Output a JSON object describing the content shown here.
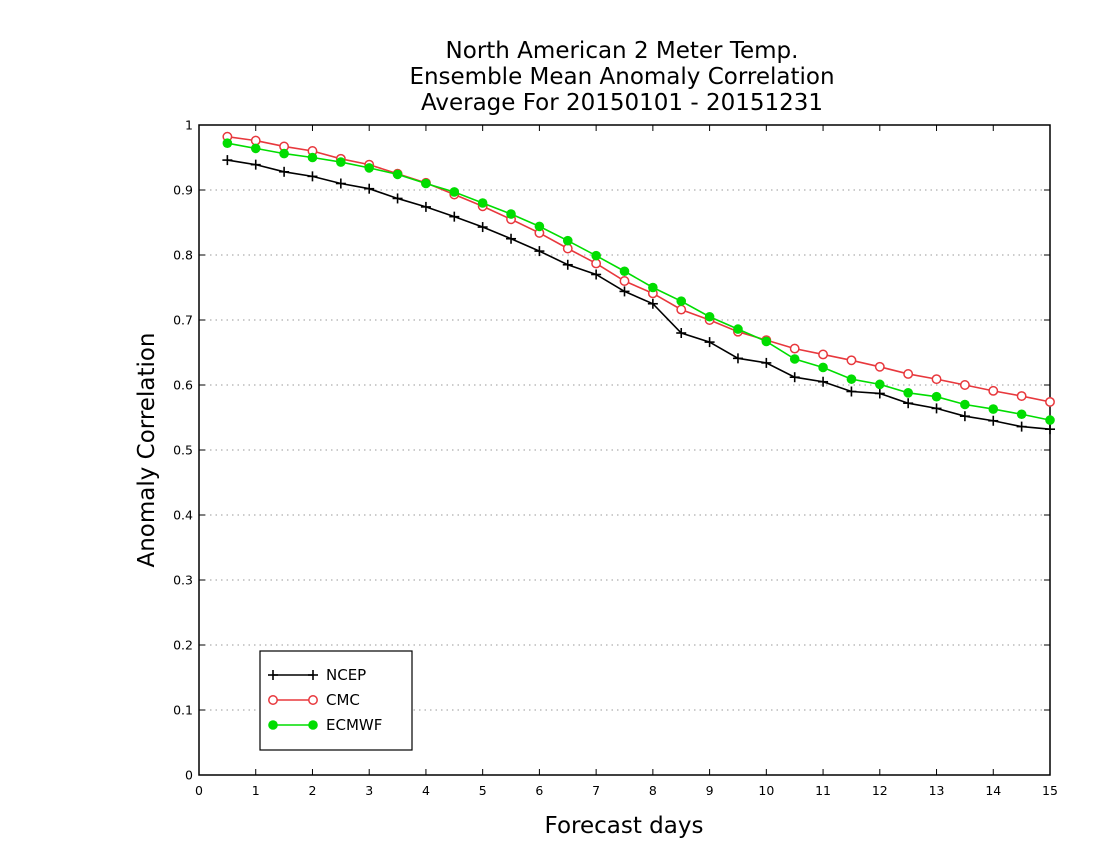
{
  "chart_data": {
    "type": "line",
    "title": [
      "North American 2 Meter Temp.",
      "Ensemble Mean Anomaly Correlation",
      "Average For 20150101 - 20151231"
    ],
    "xlabel": "Forecast days",
    "ylabel": "Anomaly Correlation",
    "xlim": [
      0,
      15
    ],
    "ylim": [
      0,
      1
    ],
    "xticks": [
      "0",
      "1",
      "2",
      "3",
      "4",
      "5",
      "6",
      "7",
      "8",
      "9",
      "10",
      "11",
      "12",
      "13",
      "14",
      "15"
    ],
    "yticks": [
      "0",
      "0.1",
      "0.2",
      "0.3",
      "0.4",
      "0.5",
      "0.6",
      "0.7",
      "0.8",
      "0.9",
      "1"
    ],
    "grid": true,
    "legend_position": "bottom-left",
    "x": [
      0.5,
      1,
      1.5,
      2,
      2.5,
      3,
      3.5,
      4,
      4.5,
      5,
      5.5,
      6,
      6.5,
      7,
      7.5,
      8,
      8.5,
      9,
      9.5,
      10,
      10.5,
      11,
      11.5,
      12,
      12.5,
      13,
      13.5,
      14,
      14.5,
      15
    ],
    "series": [
      {
        "name": "NCEP",
        "color": "#000000",
        "marker": "plus",
        "values": [
          0.946,
          0.939,
          0.928,
          0.921,
          0.91,
          0.902,
          0.887,
          0.874,
          0.859,
          0.843,
          0.825,
          0.806,
          0.785,
          0.77,
          0.744,
          0.725,
          0.68,
          0.666,
          0.641,
          0.634,
          0.612,
          0.605,
          0.59,
          0.587,
          0.572,
          0.564,
          0.552,
          0.545,
          0.536,
          0.532
        ]
      },
      {
        "name": "CMC",
        "color": "#e8383d",
        "marker": "open-circle",
        "values": [
          0.982,
          0.976,
          0.967,
          0.96,
          0.948,
          0.939,
          0.925,
          0.911,
          0.893,
          0.875,
          0.855,
          0.834,
          0.81,
          0.787,
          0.76,
          0.741,
          0.716,
          0.7,
          0.682,
          0.669,
          0.656,
          0.647,
          0.638,
          0.628,
          0.617,
          0.609,
          0.6,
          0.591,
          0.583,
          0.574
        ]
      },
      {
        "name": "ECMWF",
        "color": "#00dd00",
        "marker": "filled-circle",
        "values": [
          0.972,
          0.964,
          0.956,
          0.95,
          0.943,
          0.934,
          0.924,
          0.91,
          0.897,
          0.88,
          0.863,
          0.844,
          0.822,
          0.799,
          0.775,
          0.75,
          0.729,
          0.705,
          0.686,
          0.667,
          0.64,
          0.627,
          0.609,
          0.601,
          0.588,
          0.582,
          0.57,
          0.563,
          0.555,
          0.546
        ]
      }
    ]
  }
}
